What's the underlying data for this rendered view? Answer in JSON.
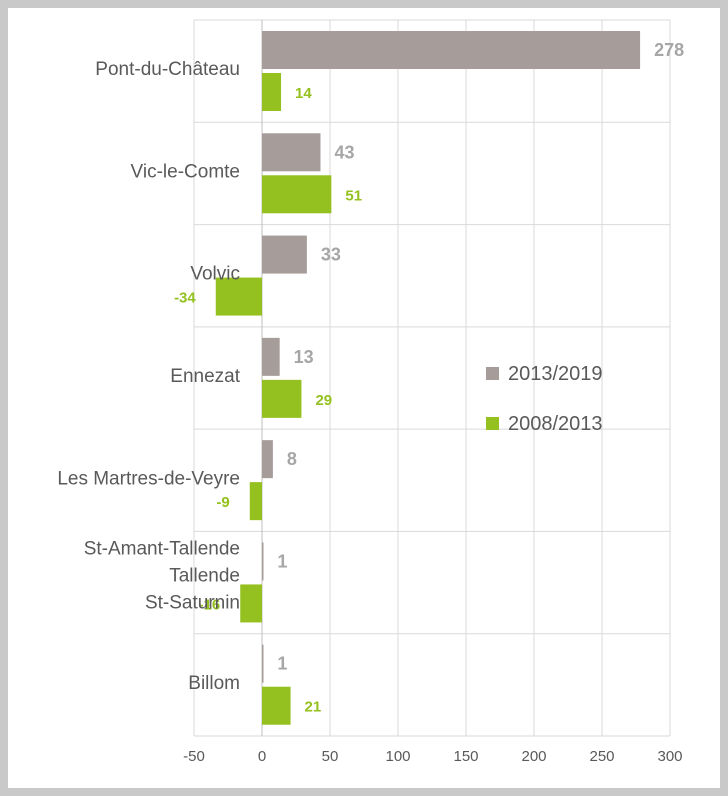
{
  "chart_data": {
    "type": "bar",
    "orientation": "horizontal",
    "categories": [
      "Pont-du-Château",
      "Vic-le-Comte",
      "Volvic",
      "Ennezat",
      "Les Martres-de-Veyre",
      "St-Amant-Tallende\nTallende\nSt-Saturnin",
      "Billom"
    ],
    "series": [
      {
        "name": "2013/2019",
        "color": "#a69c9a",
        "values": [
          278,
          43,
          33,
          13,
          8,
          1,
          1
        ]
      },
      {
        "name": "2008/2013",
        "color": "#94c11f",
        "values": [
          14,
          51,
          -34,
          29,
          -9,
          -16,
          21
        ]
      }
    ],
    "xlim": [
      -50,
      300
    ],
    "xticks": [
      -50,
      0,
      50,
      100,
      150,
      200,
      250,
      300
    ],
    "grid": true,
    "legend_position": "right",
    "data_labels": true
  }
}
